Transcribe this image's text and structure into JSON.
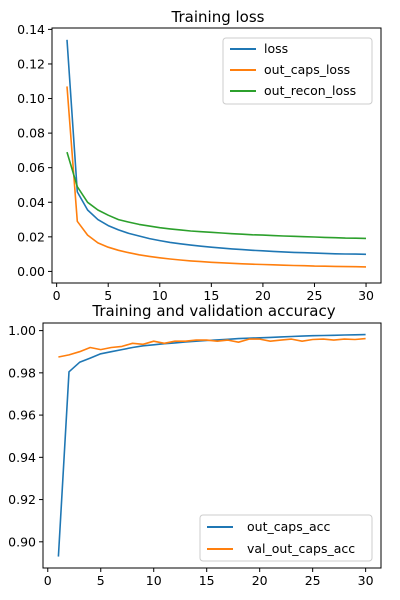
{
  "colors": {
    "blue": "#1f77b4",
    "orange": "#ff7f0e",
    "green": "#2ca02c"
  },
  "chart_data": [
    {
      "type": "line",
      "title": "Training loss",
      "xlabel": "",
      "ylabel": "",
      "xlim": [
        -0.45,
        31.45
      ],
      "ylim": [
        -0.0067,
        0.1408
      ],
      "x": [
        1,
        2,
        3,
        4,
        5,
        6,
        7,
        8,
        9,
        10,
        11,
        12,
        13,
        14,
        15,
        16,
        17,
        18,
        19,
        20,
        21,
        22,
        23,
        24,
        25,
        26,
        27,
        28,
        29,
        30
      ],
      "xticks": [
        0,
        5,
        10,
        15,
        20,
        25,
        30
      ],
      "xtick_labels": [
        "0",
        "5",
        "10",
        "15",
        "20",
        "25",
        "30"
      ],
      "yticks": [
        0.0,
        0.02,
        0.04,
        0.06,
        0.08,
        0.1,
        0.12,
        0.14
      ],
      "ytick_labels": [
        "0.00",
        "0.02",
        "0.04",
        "0.06",
        "0.08",
        "0.10",
        "0.12",
        "0.14"
      ],
      "grid": false,
      "legend_position": "top-right",
      "series": [
        {
          "name": "loss",
          "color": "#1f77b4",
          "values": [
            0.134,
            0.046,
            0.0355,
            0.03,
            0.0265,
            0.024,
            0.022,
            0.0205,
            0.019,
            0.0178,
            0.0168,
            0.016,
            0.0152,
            0.0146,
            0.014,
            0.0135,
            0.013,
            0.0126,
            0.0122,
            0.0119,
            0.0116,
            0.0113,
            0.011,
            0.0108,
            0.0106,
            0.0104,
            0.0102,
            0.0101,
            0.01,
            0.0099
          ]
        },
        {
          "name": "out_caps_loss",
          "color": "#ff7f0e",
          "values": [
            0.107,
            0.029,
            0.021,
            0.0165,
            0.014,
            0.0122,
            0.0108,
            0.0096,
            0.0087,
            0.0079,
            0.0072,
            0.0066,
            0.0061,
            0.0057,
            0.0053,
            0.005,
            0.0047,
            0.0044,
            0.0042,
            0.004,
            0.0038,
            0.0036,
            0.0034,
            0.0033,
            0.0031,
            0.003,
            0.0029,
            0.0028,
            0.0027,
            0.0026
          ]
        },
        {
          "name": "out_recon_loss",
          "color": "#2ca02c",
          "values": [
            0.069,
            0.049,
            0.04,
            0.0355,
            0.0325,
            0.03,
            0.0285,
            0.0272,
            0.0262,
            0.0253,
            0.0246,
            0.024,
            0.0234,
            0.023,
            0.0226,
            0.0222,
            0.0218,
            0.0215,
            0.0212,
            0.021,
            0.0207,
            0.0205,
            0.0203,
            0.0201,
            0.0199,
            0.0197,
            0.0195,
            0.0193,
            0.0192,
            0.0191
          ]
        }
      ]
    },
    {
      "type": "line",
      "title": "Training and validation accuracy",
      "xlabel": "",
      "ylabel": "",
      "xlim": [
        -0.45,
        31.45
      ],
      "ylim": [
        0.8876,
        1.0036
      ],
      "x": [
        1,
        2,
        3,
        4,
        5,
        6,
        7,
        8,
        9,
        10,
        11,
        12,
        13,
        14,
        15,
        16,
        17,
        18,
        19,
        20,
        21,
        22,
        23,
        24,
        25,
        26,
        27,
        28,
        29,
        30
      ],
      "xticks": [
        0,
        5,
        10,
        15,
        20,
        25,
        30
      ],
      "xtick_labels": [
        "0",
        "5",
        "10",
        "15",
        "20",
        "25",
        "30"
      ],
      "yticks": [
        0.9,
        0.92,
        0.94,
        0.96,
        0.98,
        1.0
      ],
      "ytick_labels": [
        "0.90",
        "0.92",
        "0.94",
        "0.96",
        "0.98",
        "1.00"
      ],
      "grid": false,
      "legend_position": "bottom-right",
      "series": [
        {
          "name": "out_caps_acc",
          "color": "#1f77b4",
          "values": [
            0.893,
            0.9805,
            0.985,
            0.987,
            0.989,
            0.99,
            0.991,
            0.992,
            0.9928,
            0.9933,
            0.9938,
            0.9942,
            0.9946,
            0.995,
            0.9953,
            0.9956,
            0.9959,
            0.9962,
            0.9964,
            0.9966,
            0.9968,
            0.997,
            0.9972,
            0.9974,
            0.9976,
            0.9977,
            0.9978,
            0.9979,
            0.998,
            0.9981
          ]
        },
        {
          "name": "val_out_caps_acc",
          "color": "#ff7f0e",
          "values": [
            0.9875,
            0.9885,
            0.99,
            0.992,
            0.991,
            0.992,
            0.9925,
            0.994,
            0.9935,
            0.995,
            0.994,
            0.995,
            0.995,
            0.9955,
            0.9955,
            0.995,
            0.9955,
            0.9945,
            0.996,
            0.996,
            0.995,
            0.9955,
            0.996,
            0.995,
            0.9958,
            0.996,
            0.9955,
            0.996,
            0.9958,
            0.9962
          ]
        }
      ]
    }
  ]
}
